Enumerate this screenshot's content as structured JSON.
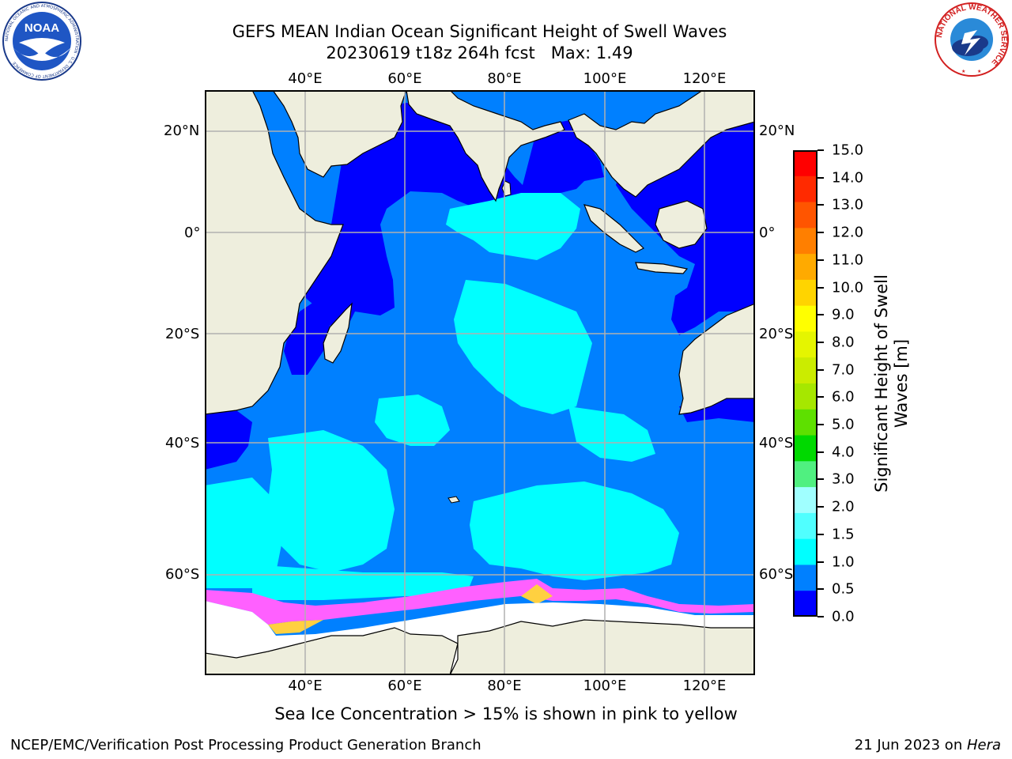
{
  "header": {
    "title_line1": "GEFS MEAN Indian Ocean Significant Height of Swell Waves",
    "title_line2": "20230619 t18z 264h fcst   Max: 1.49"
  },
  "logos": {
    "left_name": "noaa-logo",
    "left_text": "NOAA",
    "left_ring_text": "NATIONAL OCEANIC AND ATMOSPHERIC ADMINISTRATION · U.S. DEPARTMENT OF COMMERCE",
    "right_name": "nws-logo",
    "right_ring_text": "NATIONAL WEATHER SERVICE"
  },
  "map": {
    "lon_labels_top": [
      "40°E",
      "60°E",
      "80°E",
      "100°E",
      "120°E"
    ],
    "lon_labels_bottom": [
      "40°E",
      "60°E",
      "80°E",
      "100°E",
      "120°E"
    ],
    "lat_labels_left": [
      "20°N",
      "0°",
      "20°S",
      "40°S",
      "60°S"
    ],
    "lat_labels_right": [
      "20°N",
      "0°",
      "20°S",
      "40°S",
      "60°S"
    ],
    "colors": {
      "land": "#eeeedd",
      "sea_ice": "#ffffff",
      "grid": "#b0b0b0",
      "band_0_0_5": "#0000ff",
      "band_0_5_1_0": "#0080ff",
      "band_1_0_1_5": "#00ffff",
      "ice_pink": "#ff60ff",
      "ice_yellow": "#ffd040"
    }
  },
  "colorbar": {
    "label_line1": "Significant Height of Swell",
    "label_line2": "Waves [m]",
    "ticks": [
      "15.0",
      "14.0",
      "13.0",
      "12.0",
      "11.0",
      "10.0",
      "9.0",
      "8.0",
      "7.0",
      "6.0",
      "5.0",
      "4.0",
      "3.0",
      "2.0",
      "1.5",
      "1.0",
      "0.5",
      "0.0"
    ],
    "colors_top_to_bottom": [
      "#ff0000",
      "#ff2a00",
      "#ff5500",
      "#ff7f00",
      "#ffaa00",
      "#ffd400",
      "#ffff00",
      "#e5f500",
      "#cbec00",
      "#a6e700",
      "#5ee000",
      "#00d900",
      "#50f080",
      "#a0ffff",
      "#50ffff",
      "#00ffff",
      "#0080ff",
      "#0000ff"
    ]
  },
  "caption": "Sea Ice Concentration > 15% is shown in pink to yellow",
  "footer": {
    "left": "NCEP/EMC/Verification Post Processing Product Generation Branch",
    "date": "21 Jun 2023 on ",
    "machine": "Hera"
  }
}
